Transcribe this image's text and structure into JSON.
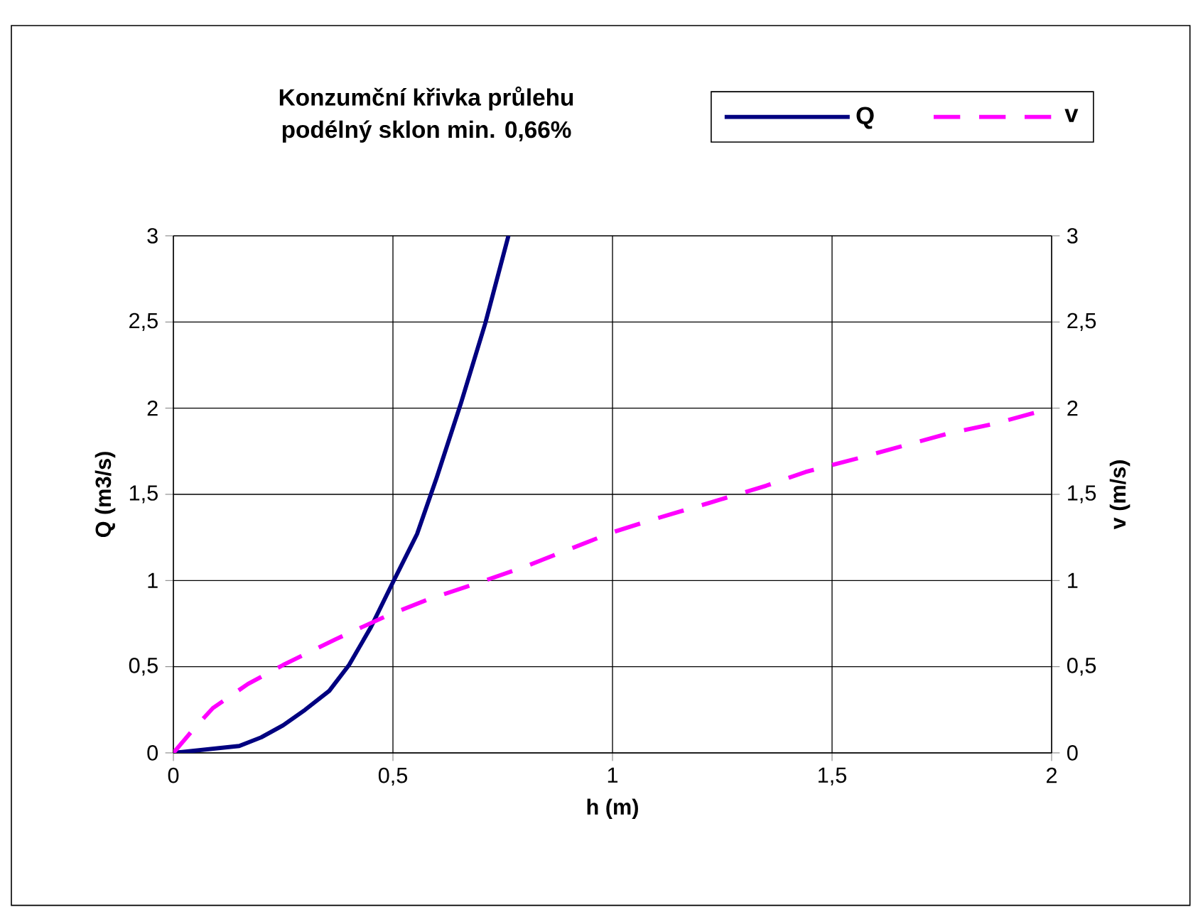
{
  "chart_data": {
    "type": "line",
    "title": "Konzumční křivka průlehu",
    "subtitle": "podélný sklon min. 0,66%",
    "xlabel": "h (m)",
    "ylabel": "Q (m3/s)",
    "y2label": "v (m/s)",
    "xlim": [
      0,
      2
    ],
    "ylim": [
      0,
      3
    ],
    "y2lim": [
      0,
      3
    ],
    "xticks": [
      0,
      {
        "value": 0.5,
        "label": "0,5"
      },
      1,
      {
        "value": 1.5,
        "label": "1,5"
      },
      2
    ],
    "yticks": [
      0,
      {
        "value": 0.5,
        "label": "0,5"
      },
      1,
      {
        "value": 1.5,
        "label": "1,5"
      },
      2,
      {
        "value": 2.5,
        "label": "2,5"
      },
      3
    ],
    "y2ticks": [
      0,
      {
        "value": 0.5,
        "label": "0,5"
      },
      1,
      {
        "value": 1.5,
        "label": "1,5"
      },
      2,
      {
        "value": 2.5,
        "label": "2,5"
      },
      3
    ],
    "grid": true,
    "legend": "top right",
    "marker": "none",
    "series": [
      {
        "name": "Q",
        "color": "#000080",
        "line_style": "solid",
        "x": [
          0,
          0.15,
          0.2,
          0.25,
          0.3,
          0.355,
          0.4,
          0.45,
          0.5,
          0.555,
          0.6,
          0.655,
          0.71,
          0.763
        ],
        "values": [
          0,
          0.04,
          0.09,
          0.16,
          0.25,
          0.36,
          0.51,
          0.73,
          0.99,
          1.27,
          1.6,
          2.03,
          2.49,
          3.0
        ]
      },
      {
        "name": "v",
        "color": "#ff00ff",
        "line_style": "dashed",
        "axis": "y2",
        "x": [
          0,
          0.05,
          0.09,
          0.17,
          0.25,
          0.37,
          0.49,
          0.58,
          0.71,
          0.8,
          0.91,
          1.0,
          1.1,
          1.22,
          1.35,
          1.44,
          1.56,
          1.66,
          1.76,
          1.87,
          2.0
        ],
        "values": [
          0,
          0.15,
          0.26,
          0.4,
          0.51,
          0.66,
          0.8,
          0.89,
          1.0,
          1.08,
          1.19,
          1.28,
          1.36,
          1.45,
          1.55,
          1.63,
          1.71,
          1.78,
          1.85,
          1.91,
          2.0
        ]
      }
    ]
  }
}
